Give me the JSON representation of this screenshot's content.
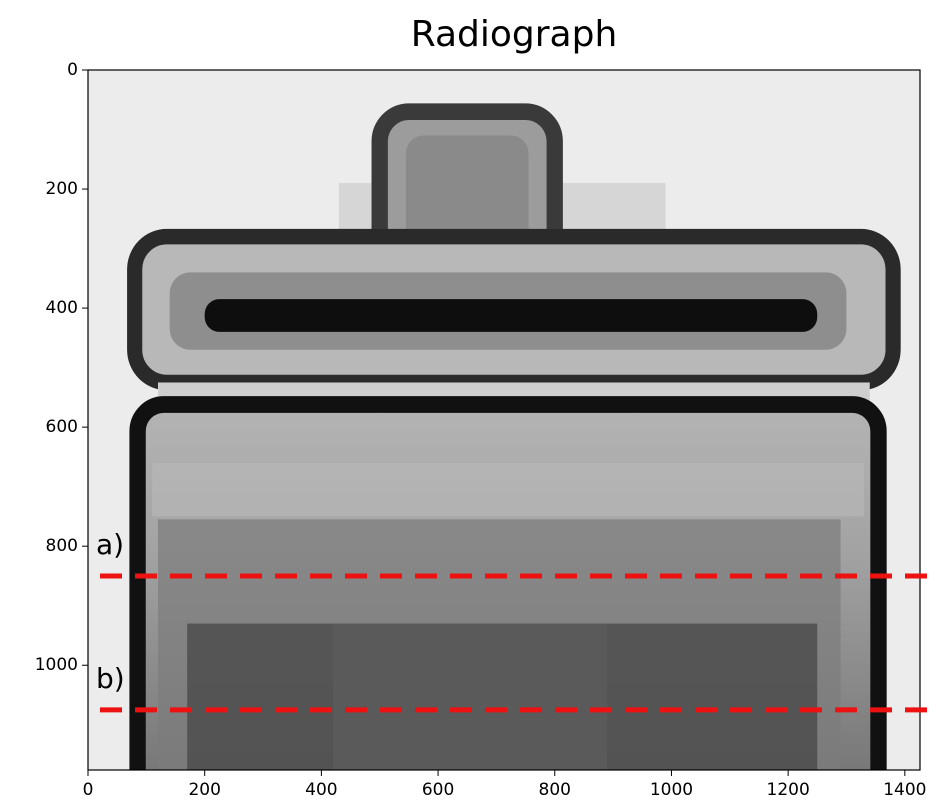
{
  "chart_data": {
    "type": "image",
    "title": "Radiograph",
    "xlim": [
      0,
      1426
    ],
    "ylim": [
      1176,
      0
    ],
    "xticks": [
      0,
      200,
      400,
      600,
      800,
      1000,
      1200,
      1400
    ],
    "yticks": [
      0,
      200,
      400,
      600,
      800,
      1000
    ],
    "annotations": [
      {
        "label": "a)",
        "y": 850
      },
      {
        "label": "b)",
        "y": 1075
      }
    ],
    "line_color": "#ee1111"
  }
}
